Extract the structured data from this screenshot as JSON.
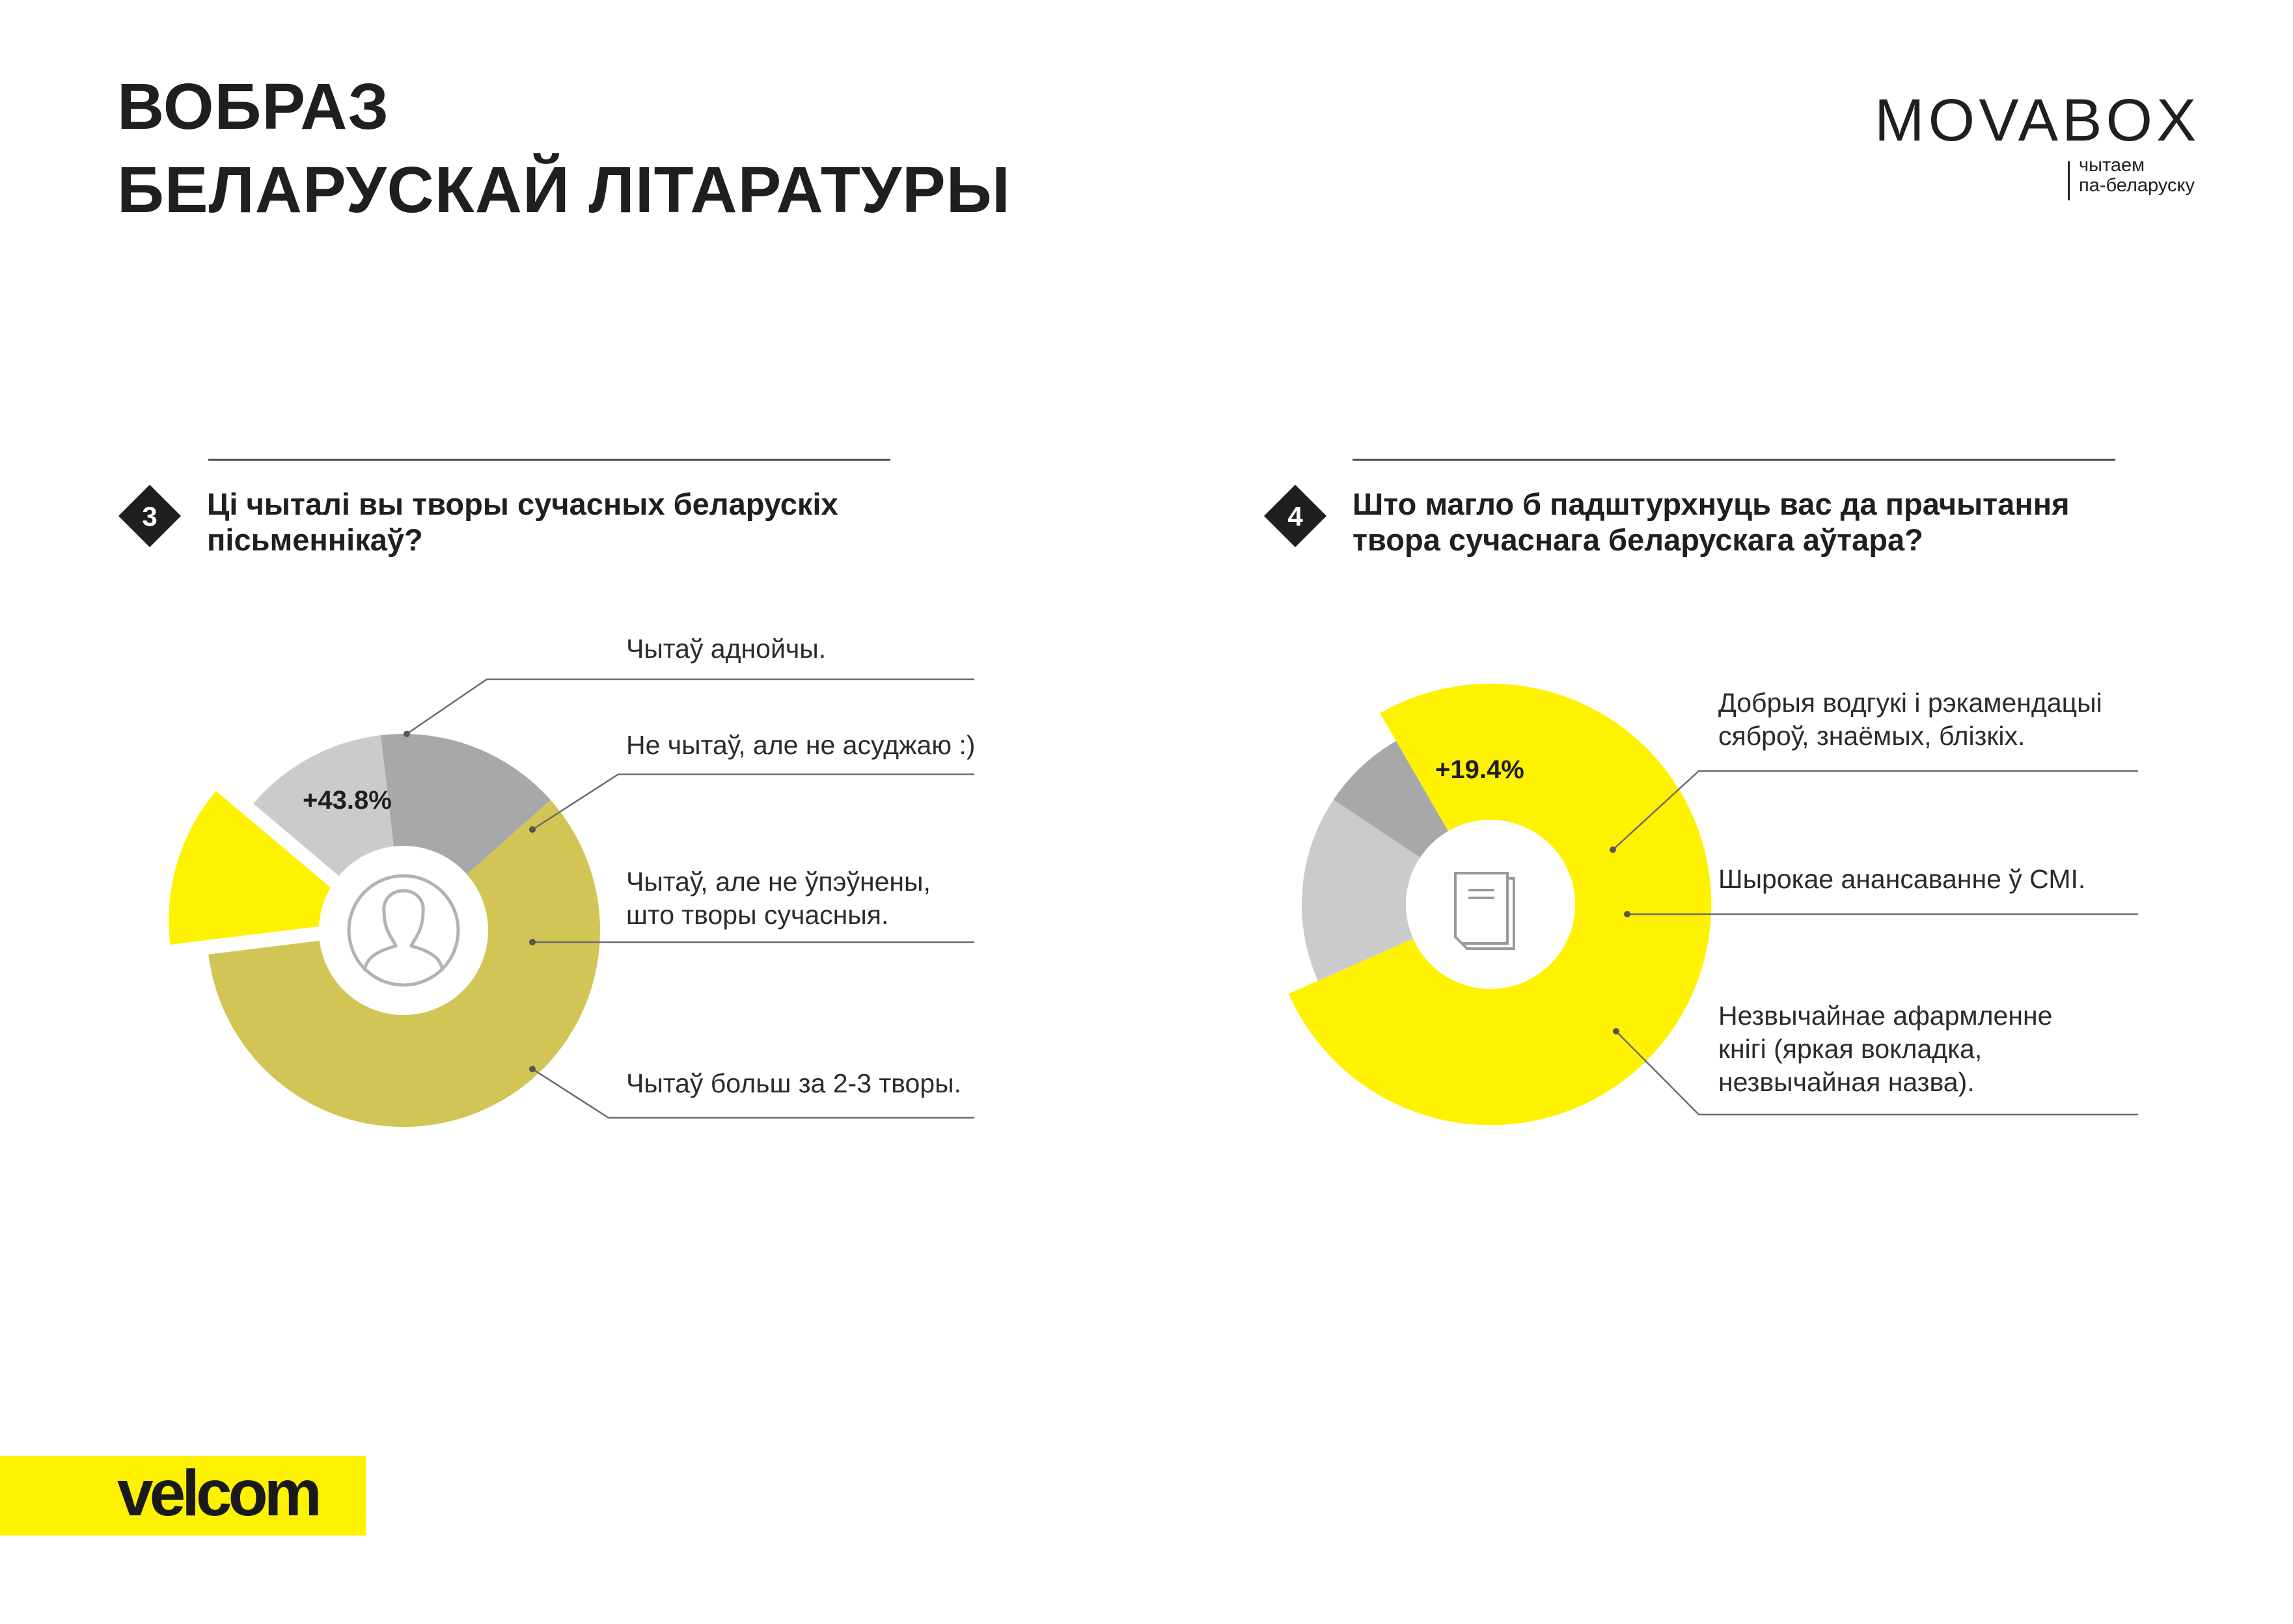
{
  "page": {
    "title_lines": [
      "ВОБРАЗ",
      "БЕЛАРУСКАЙ ЛІТАРАТУРЫ"
    ]
  },
  "logo": {
    "name": "MOVABOX",
    "tagline_lines": [
      "чытаем",
      "па-беларуску"
    ]
  },
  "sponsor": {
    "name": "velcom",
    "brand_color": "#fff200"
  },
  "colors": {
    "yellow": "#fff200",
    "olive": "#d1c655",
    "light_gray": "#cbcbcd",
    "mid_gray": "#a7a8aa",
    "dark_text": "#1f1f1f"
  },
  "icons": [
    "person-icon",
    "book-icon"
  ],
  "chart_data": [
    {
      "type": "pie",
      "number": "3",
      "question_lines": [
        "Ці чыталі вы творы сучасных беларускіх",
        "пісьменнікаў?"
      ],
      "highlight_label": "+43.8%",
      "center_icon": "person-icon",
      "slices": [
        {
          "label": "Чытаў аднойчы.",
          "value": 13.1,
          "color": "#fff200",
          "exploded": true
        },
        {
          "label": "Не чытаў, але не асуджаю :)",
          "value": 12.0,
          "color": "#cbcbcd",
          "exploded": false
        },
        {
          "label": "Чытаў, але не ўпэўнены,\nшто творы сучасныя.",
          "value": 15.3,
          "color": "#a7a8aa",
          "exploded": false
        },
        {
          "label": "Чытаў больш за 2-3 творы.",
          "value": 59.6,
          "color": "#d1c655",
          "exploded": false
        }
      ]
    },
    {
      "type": "pie",
      "number": "4",
      "question_lines": [
        "Што магло б падштурхнуць вас да прачытання",
        "твора сучаснага беларускага аўтара?"
      ],
      "highlight_label": "+19.4%",
      "center_icon": "book-icon",
      "slices": [
        {
          "label": "Добрыя водгукі і рэкамендацыі\nсяброў, знаёмых, блізкіх.",
          "value": 76.7,
          "color": "#fff200",
          "exploded": true
        },
        {
          "label": "Шырокае анансаванне ў СМІ.",
          "value": 16.0,
          "color": "#cbcbcd",
          "exploded": false
        },
        {
          "label": "Незвычайнае афармленне\nкнігі (яркая вокладка,\nнезвычайная назва).",
          "value": 7.3,
          "color": "#a7a8aa",
          "exploded": false
        }
      ]
    }
  ]
}
